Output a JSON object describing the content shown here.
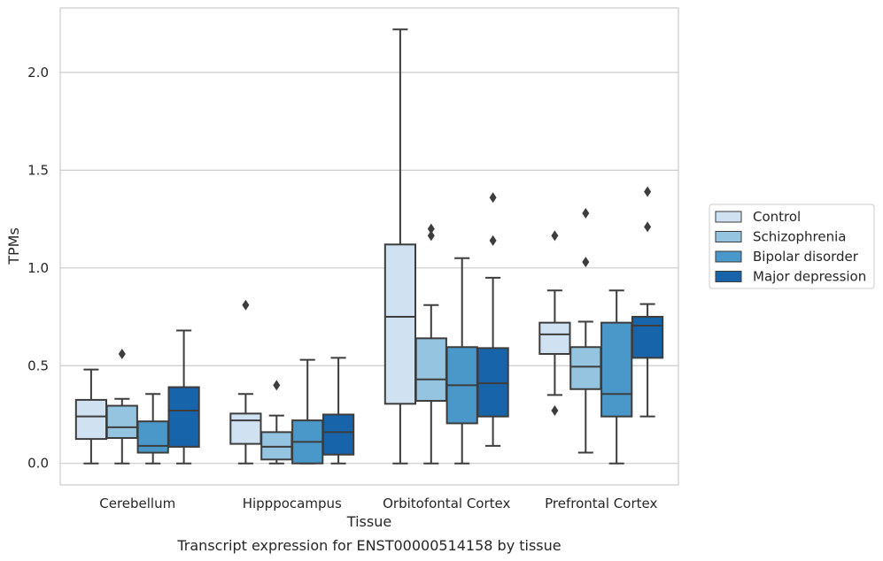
{
  "chart_data": {
    "type": "box",
    "xlabel": "Tissue",
    "ylabel": "TPMs",
    "caption": "Transcript expression for ENST00000514158 by tissue",
    "categories": [
      "Cerebellum",
      "Hipppocampus",
      "Orbitofontal Cortex",
      "Prefrontal Cortex"
    ],
    "ylim": [
      -0.11,
      2.33
    ],
    "yticks": [
      0.0,
      0.5,
      1.0,
      1.5,
      2.0
    ],
    "ytick_labels": [
      "0.0",
      "0.5",
      "1.0",
      "1.5",
      "2.0"
    ],
    "grid": true,
    "legend_position": "right",
    "series": [
      {
        "name": "Control",
        "color": "#d0e1f2",
        "boxes": [
          {
            "whislo": 0.0,
            "q1": 0.125,
            "med": 0.24,
            "q3": 0.325,
            "whishi": 0.48,
            "fliers": []
          },
          {
            "whislo": 0.0,
            "q1": 0.1,
            "med": 0.22,
            "q3": 0.255,
            "whishi": 0.355,
            "fliers": [
              0.81
            ]
          },
          {
            "whislo": 0.0,
            "q1": 0.305,
            "med": 0.75,
            "q3": 1.12,
            "whishi": 2.22,
            "fliers": []
          },
          {
            "whislo": 0.35,
            "q1": 0.56,
            "med": 0.66,
            "q3": 0.72,
            "whishi": 0.885,
            "fliers": [
              1.165,
              0.27
            ]
          }
        ]
      },
      {
        "name": "Schizophrenia",
        "color": "#94c4df",
        "boxes": [
          {
            "whislo": 0.0,
            "q1": 0.13,
            "med": 0.185,
            "q3": 0.295,
            "whishi": 0.33,
            "fliers": [
              0.56
            ]
          },
          {
            "whislo": 0.0,
            "q1": 0.02,
            "med": 0.085,
            "q3": 0.16,
            "whishi": 0.245,
            "fliers": [
              0.4
            ]
          },
          {
            "whislo": 0.0,
            "q1": 0.32,
            "med": 0.43,
            "q3": 0.64,
            "whishi": 0.81,
            "fliers": [
              1.165,
              1.2
            ]
          },
          {
            "whislo": 0.055,
            "q1": 0.38,
            "med": 0.495,
            "q3": 0.595,
            "whishi": 0.725,
            "fliers": [
              1.28,
              1.03
            ]
          }
        ]
      },
      {
        "name": "Bipolar disorder",
        "color": "#4a98c9",
        "boxes": [
          {
            "whislo": 0.0,
            "q1": 0.055,
            "med": 0.09,
            "q3": 0.215,
            "whishi": 0.355,
            "fliers": []
          },
          {
            "whislo": 0.0,
            "q1": 0.0,
            "med": 0.11,
            "q3": 0.22,
            "whishi": 0.53,
            "fliers": []
          },
          {
            "whislo": 0.0,
            "q1": 0.205,
            "med": 0.4,
            "q3": 0.595,
            "whishi": 1.05,
            "fliers": []
          },
          {
            "whislo": 0.0,
            "q1": 0.24,
            "med": 0.355,
            "q3": 0.72,
            "whishi": 0.885,
            "fliers": []
          }
        ]
      },
      {
        "name": "Major depression",
        "color": "#1764ab",
        "boxes": [
          {
            "whislo": 0.0,
            "q1": 0.085,
            "med": 0.27,
            "q3": 0.39,
            "whishi": 0.68,
            "fliers": []
          },
          {
            "whislo": 0.0,
            "q1": 0.045,
            "med": 0.16,
            "q3": 0.25,
            "whishi": 0.54,
            "fliers": []
          },
          {
            "whislo": 0.09,
            "q1": 0.24,
            "med": 0.41,
            "q3": 0.59,
            "whishi": 0.95,
            "fliers": [
              1.36,
              1.14
            ]
          },
          {
            "whislo": 0.24,
            "q1": 0.54,
            "med": 0.705,
            "q3": 0.75,
            "whishi": 0.815,
            "fliers": [
              1.39,
              1.21
            ]
          }
        ]
      }
    ]
  }
}
